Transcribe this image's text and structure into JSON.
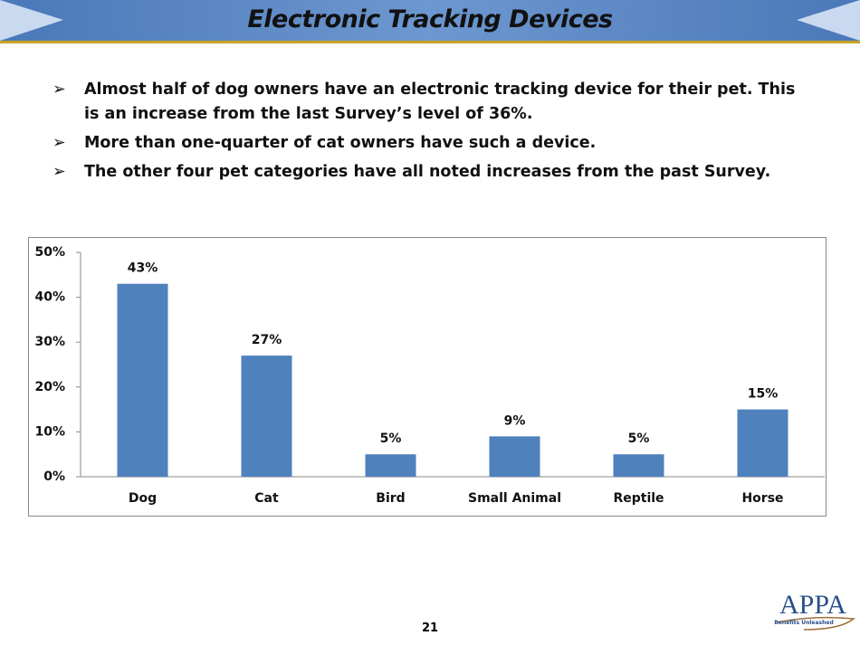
{
  "header": {
    "title": "Electronic Tracking Devices"
  },
  "bullets": [
    "Almost half of dog owners have an electronic tracking device for their pet. This is an increase from the last Survey’s level of 36%.",
    "More than one-quarter of cat owners have such a device.",
    "The other four pet categories have all noted increases from the past Survey."
  ],
  "chart_data": {
    "type": "bar",
    "categories": [
      "Dog",
      "Cat",
      "Bird",
      "Small Animal",
      "Reptile",
      "Horse"
    ],
    "values": [
      43,
      27,
      5,
      9,
      5,
      15
    ],
    "value_labels": [
      "43%",
      "27%",
      "5%",
      "9%",
      "5%",
      "15%"
    ],
    "color": "#4f81bd",
    "ylim": [
      0,
      50
    ],
    "yticks": [
      {
        "value": 0,
        "label": "0%"
      },
      {
        "value": 10,
        "label": "10%"
      },
      {
        "value": 20,
        "label": "20%"
      },
      {
        "value": 30,
        "label": "30%"
      },
      {
        "value": 40,
        "label": "40%"
      },
      {
        "value": 50,
        "label": "50%"
      }
    ]
  },
  "footer": {
    "page_number": "21"
  },
  "logo": {
    "name": "APPA",
    "tagline": "Benefits Unleashed"
  }
}
